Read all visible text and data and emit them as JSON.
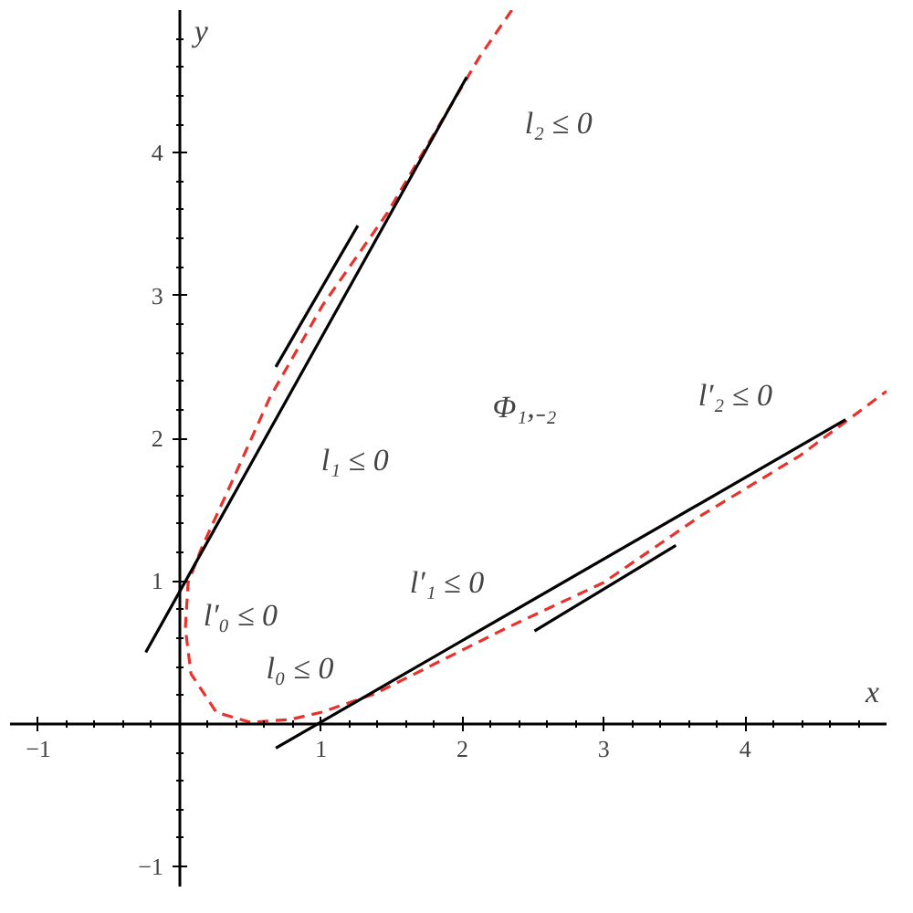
{
  "chart_data": {
    "type": "line",
    "xlabel": "x",
    "ylabel": "y",
    "xlim": [
      -1.2,
      5.0
    ],
    "ylim": [
      -1.14,
      5.0
    ],
    "xticks": [
      -1,
      1,
      2,
      3,
      4
    ],
    "yticks": [
      -1,
      1,
      2,
      3,
      4
    ],
    "grid": false,
    "series": [
      {
        "color": "#e8322b",
        "line_style": "dashed",
        "x": [
          2.35,
          2.12,
          1.47,
          1.01,
          0.64,
          0.39,
          0.15,
          0.06,
          0.04,
          0.08,
          0.26,
          0.5,
          0.78,
          1.0,
          1.38,
          2.31,
          3.0,
          3.69,
          4.39,
          5.0
        ],
        "values": [
          5.0,
          4.67,
          3.58,
          2.93,
          2.29,
          1.74,
          1.22,
          0.99,
          0.67,
          0.35,
          0.08,
          0.01,
          0.03,
          0.08,
          0.21,
          0.67,
          0.99,
          1.46,
          1.88,
          2.33
        ]
      },
      {
        "color": "#000000",
        "line_style": "solid",
        "x": [
          -0.24,
          2.03
        ],
        "values": [
          0.5,
          4.53
        ]
      },
      {
        "color": "#000000",
        "line_style": "solid",
        "x": [
          0.68,
          1.26
        ],
        "values": [
          2.5,
          3.49
        ]
      },
      {
        "color": "#000000",
        "line_style": "solid",
        "x": [
          0.68,
          4.71
        ],
        "values": [
          -0.17,
          2.13
        ]
      },
      {
        "color": "#000000",
        "line_style": "solid",
        "x": [
          2.51,
          3.51
        ],
        "values": [
          0.65,
          1.25
        ]
      }
    ],
    "annotations": [
      "l₂ ≤ 0",
      "l₁ ≤ 0",
      "Φ₁,₋₂",
      "l′₀ ≤ 0",
      "l₀ ≤ 0",
      "l′₁ ≤ 0",
      "l′₂ ≤ 0"
    ]
  }
}
